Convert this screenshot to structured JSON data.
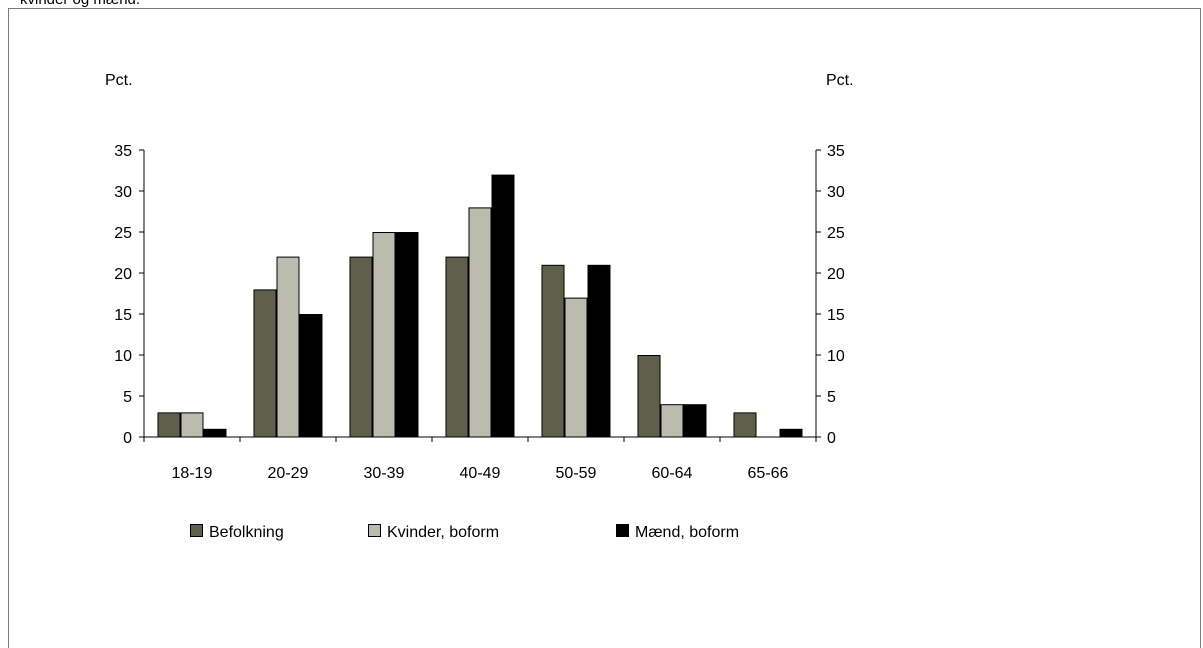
{
  "caption": "kvinder og mænd.",
  "colors": {
    "Befolkning": "#5f604b",
    "Kvinder, boform": "#bcbcae",
    "Mænd, boform": "#000000"
  },
  "chart_data": {
    "type": "bar",
    "categories": [
      "18-19",
      "20-29",
      "30-39",
      "40-49",
      "50-59",
      "60-64",
      "65-66"
    ],
    "series": [
      {
        "name": "Befolkning",
        "values": [
          3,
          18,
          22,
          22,
          21,
          10,
          3
        ]
      },
      {
        "name": "Kvinder, boform",
        "values": [
          3,
          22,
          25,
          28,
          17,
          4,
          0
        ]
      },
      {
        "name": "Mænd, boform",
        "values": [
          1,
          15,
          25,
          32,
          21,
          4,
          1
        ]
      }
    ],
    "ylabel_left": "Pct.",
    "ylabel_right": "Pct.",
    "ylim": [
      0,
      35
    ],
    "yticks": [
      0,
      5,
      10,
      15,
      20,
      25,
      30,
      35
    ],
    "grid": false,
    "legend_position": "bottom"
  }
}
